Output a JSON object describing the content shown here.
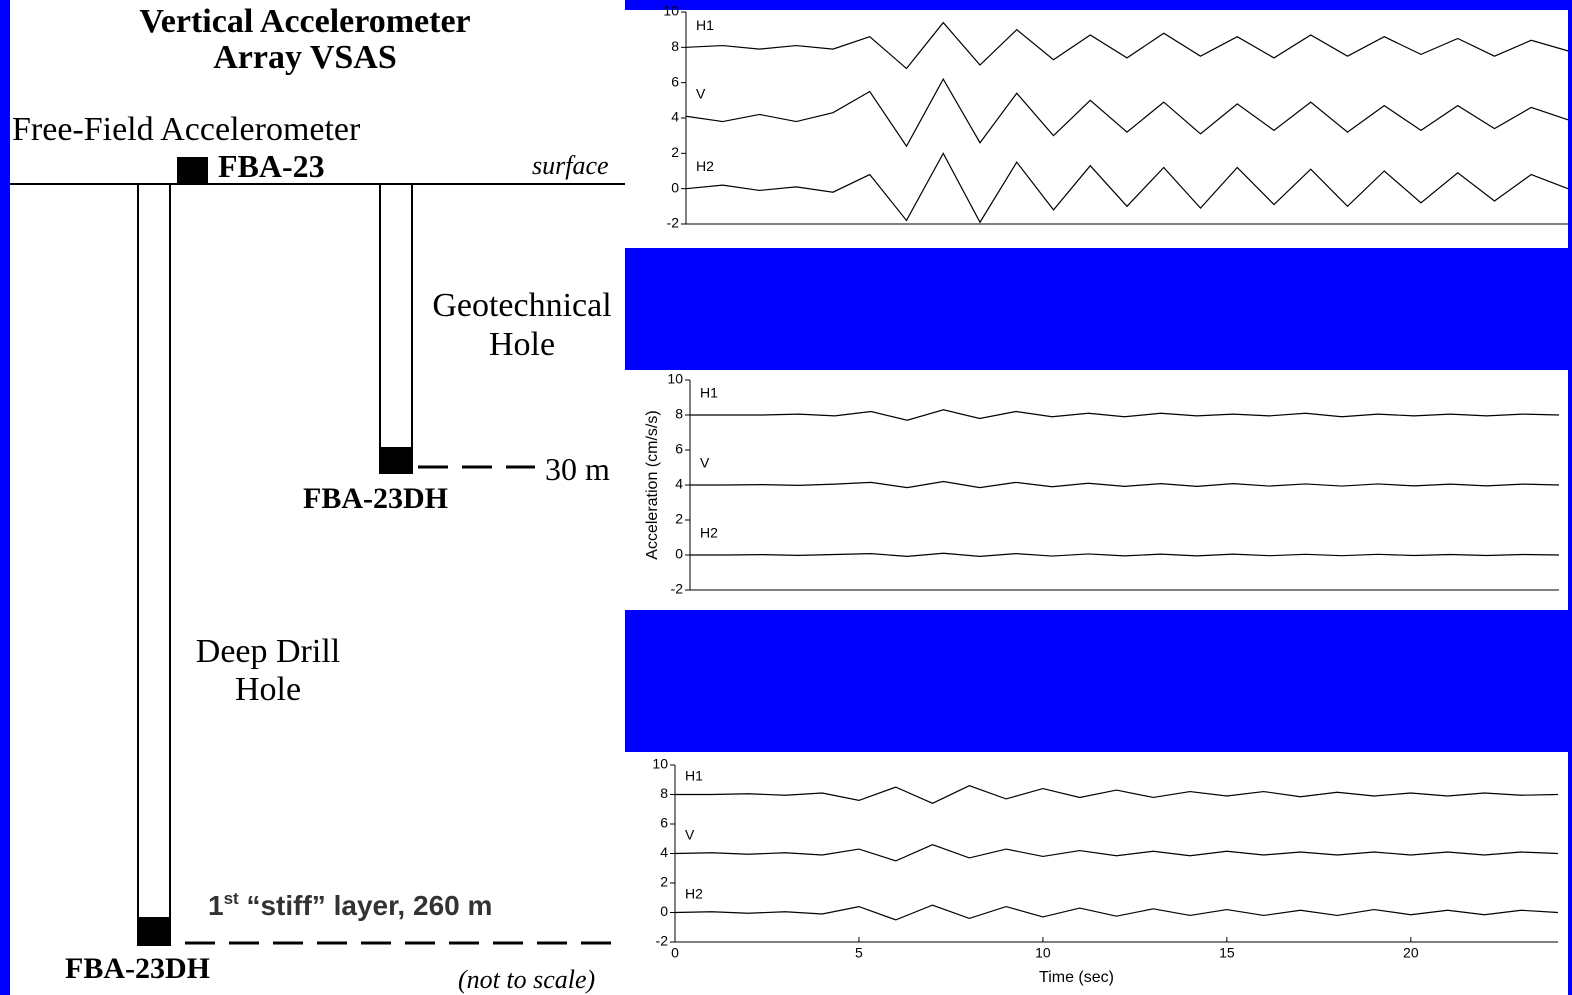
{
  "diagram": {
    "title": [
      "Vertical Accelerometer",
      "Array VSAS"
    ],
    "free_field": "Free-Field Accelerometer",
    "surface_sensor": "FBA-23",
    "surface": "surface",
    "geotech_hole": [
      "Geotechnical",
      "Hole"
    ],
    "geotech_depth": "30 m",
    "geotech_sensor": "FBA-23DH",
    "deep_hole": [
      "Deep Drill",
      "Hole"
    ],
    "deep_sensor": "FBA-23DH",
    "note": "(not to scale)",
    "annotation": {
      "number": "1",
      "sup": "st",
      "text": " “stiff” layer, 260 m"
    }
  },
  "chart_data": [
    {
      "type": "line",
      "x": [
        0,
        1,
        2,
        3,
        4,
        5,
        6,
        7,
        8,
        9,
        10,
        11,
        12,
        13,
        14,
        15,
        16,
        17,
        18,
        19,
        20,
        21,
        22,
        23,
        24
      ],
      "xlim": [
        0,
        24
      ],
      "ylim": [
        -2,
        10
      ],
      "yticks": [
        -2,
        0,
        2,
        4,
        6,
        8,
        10
      ],
      "series": [
        {
          "name": "H1",
          "color": "#000000",
          "values": [
            8,
            8.1,
            7.9,
            8.1,
            7.9,
            8.6,
            6.8,
            9.4,
            7.0,
            9.0,
            7.3,
            8.7,
            7.4,
            8.8,
            7.5,
            8.6,
            7.4,
            8.7,
            7.5,
            8.6,
            7.6,
            8.5,
            7.5,
            8.4,
            7.8
          ]
        },
        {
          "name": "V",
          "color": "#000000",
          "values": [
            4.1,
            3.8,
            4.2,
            3.8,
            4.3,
            5.5,
            2.4,
            6.2,
            2.6,
            5.4,
            3.0,
            5.0,
            3.2,
            4.9,
            3.1,
            4.8,
            3.3,
            4.9,
            3.2,
            4.7,
            3.3,
            4.7,
            3.4,
            4.6,
            3.9
          ]
        },
        {
          "name": "H2",
          "color": "#000000",
          "values": [
            0,
            0.2,
            -0.1,
            0.1,
            -0.2,
            0.8,
            -1.8,
            2.0,
            -1.9,
            1.5,
            -1.2,
            1.3,
            -1.0,
            1.2,
            -1.1,
            1.2,
            -0.9,
            1.1,
            -1.0,
            1.0,
            -0.8,
            0.9,
            -0.7,
            0.8,
            0
          ]
        }
      ]
    },
    {
      "type": "line",
      "x": [
        0,
        1,
        2,
        3,
        4,
        5,
        6,
        7,
        8,
        9,
        10,
        11,
        12,
        13,
        14,
        15,
        16,
        17,
        18,
        19,
        20,
        21,
        22,
        23,
        24
      ],
      "xlim": [
        0,
        24
      ],
      "ylim": [
        -2,
        10
      ],
      "yticks": [
        -2,
        0,
        2,
        4,
        6,
        8,
        10
      ],
      "ylabel": "Acceleration (cm/s/s)",
      "series": [
        {
          "name": "H1",
          "color": "#000000",
          "values": [
            8,
            8,
            8,
            8.05,
            7.95,
            8.2,
            7.7,
            8.3,
            7.8,
            8.2,
            7.9,
            8.1,
            7.9,
            8.1,
            7.95,
            8.05,
            7.95,
            8.1,
            7.9,
            8.05,
            7.95,
            8.05,
            7.95,
            8.05,
            8
          ]
        },
        {
          "name": "V",
          "color": "#000000",
          "values": [
            4,
            4,
            4.02,
            3.98,
            4.05,
            4.15,
            3.85,
            4.2,
            3.85,
            4.15,
            3.9,
            4.1,
            3.92,
            4.08,
            3.92,
            4.08,
            3.94,
            4.06,
            3.94,
            4.06,
            3.95,
            4.05,
            3.95,
            4.05,
            4
          ]
        },
        {
          "name": "H2",
          "color": "#000000",
          "values": [
            0,
            0,
            0.02,
            -0.02,
            0.03,
            0.08,
            -0.08,
            0.1,
            -0.08,
            0.08,
            -0.06,
            0.06,
            -0.05,
            0.05,
            -0.05,
            0.05,
            -0.04,
            0.04,
            -0.04,
            0.04,
            -0.03,
            0.03,
            -0.03,
            0.03,
            0
          ]
        }
      ]
    },
    {
      "type": "line",
      "x": [
        0,
        1,
        2,
        3,
        4,
        5,
        6,
        7,
        8,
        9,
        10,
        11,
        12,
        13,
        14,
        15,
        16,
        17,
        18,
        19,
        20,
        21,
        22,
        23,
        24
      ],
      "xlim": [
        0,
        24
      ],
      "xticks": [
        0,
        5,
        10,
        15,
        20
      ],
      "ylim": [
        -2,
        10
      ],
      "yticks": [
        -2,
        0,
        2,
        4,
        6,
        8,
        10
      ],
      "xlabel": "Time (sec)",
      "series": [
        {
          "name": "H1",
          "color": "#000000",
          "values": [
            8,
            8,
            8.05,
            7.95,
            8.1,
            7.6,
            8.5,
            7.4,
            8.6,
            7.7,
            8.4,
            7.8,
            8.3,
            7.8,
            8.2,
            7.9,
            8.2,
            7.85,
            8.15,
            7.9,
            8.1,
            7.9,
            8.1,
            7.95,
            8
          ]
        },
        {
          "name": "V",
          "color": "#000000",
          "values": [
            4,
            4.05,
            3.95,
            4.05,
            3.9,
            4.3,
            3.5,
            4.6,
            3.7,
            4.3,
            3.8,
            4.2,
            3.85,
            4.15,
            3.85,
            4.15,
            3.9,
            4.1,
            3.9,
            4.1,
            3.9,
            4.1,
            3.9,
            4.1,
            4
          ]
        },
        {
          "name": "H2",
          "color": "#000000",
          "values": [
            0,
            0.05,
            -0.05,
            0.05,
            -0.1,
            0.4,
            -0.5,
            0.5,
            -0.4,
            0.4,
            -0.3,
            0.3,
            -0.25,
            0.25,
            -0.2,
            0.2,
            -0.2,
            0.15,
            -0.2,
            0.2,
            -0.15,
            0.15,
            -0.15,
            0.15,
            0
          ]
        }
      ]
    }
  ]
}
